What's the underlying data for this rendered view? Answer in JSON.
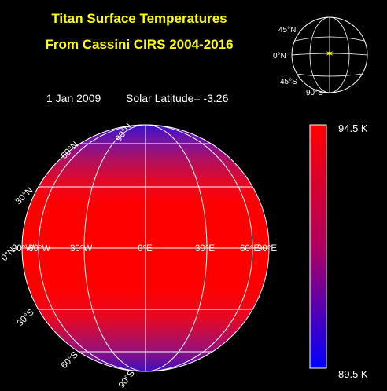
{
  "title": {
    "line1": "Titan Surface Temperatures",
    "line2": "From Cassini CIRS 2004-2016"
  },
  "info": {
    "date": "1 Jan 2009",
    "solar_latitude": "Solar Latitude= -3.26"
  },
  "globe": {
    "lat_labels": [
      "90°N",
      "60°N",
      "30°N",
      "0°N",
      "30°S",
      "60°S",
      "90°S"
    ],
    "lon_labels": [
      "90°W",
      "60°W",
      "30°W",
      "0°E",
      "30°E",
      "60°E",
      "90°E"
    ],
    "gradient_colors": {
      "hot": "#ff0000",
      "mid": "#cc0033",
      "cold": "#3300cc"
    }
  },
  "inset": {
    "labels": [
      "45°N",
      "0°N",
      "45°S",
      "90°S"
    ],
    "marker_color": "#ffff00"
  },
  "colorbar": {
    "max_label": "94.5 K",
    "min_label": "89.5 K",
    "max_color": "#ff0000",
    "mid_color": "#b00060",
    "min_color": "#0000ff"
  }
}
